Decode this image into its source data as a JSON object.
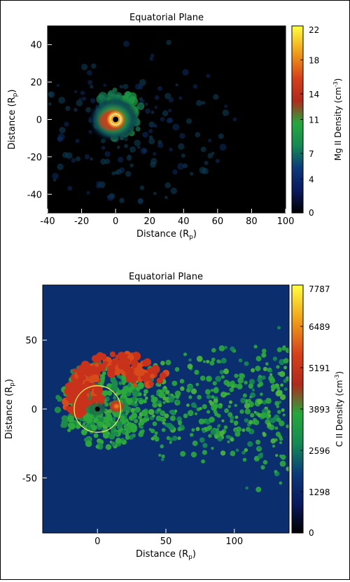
{
  "chart_data": [
    {
      "type": "heatmap",
      "title": "Equatorial Plane",
      "xlabel": "Distance (R",
      "xlabel_sub": "p",
      "ylabel": "Distance (R",
      "ylabel_sub": "p",
      "xlim": [
        -40,
        100
      ],
      "ylim": [
        -50,
        50
      ],
      "xticks": [
        -40,
        -20,
        0,
        20,
        40,
        60,
        80,
        100
      ],
      "yticks": [
        -40,
        -20,
        0,
        20,
        40
      ],
      "colorbar": {
        "label": "Mg II Density (cm",
        "label_sup": "-3",
        "ticks": [
          0,
          4,
          7,
          11,
          14,
          18,
          22
        ],
        "range": [
          0,
          22
        ]
      },
      "features": {
        "planet_x": 0,
        "planet_y": 0,
        "inner_circle_radius": 3.2,
        "peak_value": 22,
        "cloud_extent_x": [
          -25,
          40
        ],
        "cloud_extent_y": [
          -30,
          35
        ]
      }
    },
    {
      "type": "heatmap",
      "title": "Equatorial Plane",
      "xlabel": "Distance (R",
      "xlabel_sub": "p",
      "ylabel": "Distance (R",
      "ylabel_sub": "p",
      "xlim": [
        -40,
        140
      ],
      "ylim": [
        -90,
        90
      ],
      "xticks": [
        0,
        50,
        100
      ],
      "yticks": [
        -50,
        0,
        50
      ],
      "colorbar": {
        "label": "C II Density (cm",
        "label_sup": "-3",
        "ticks": [
          0,
          1298,
          2596,
          3893,
          5191,
          6489,
          7787
        ],
        "range": [
          0,
          7787
        ]
      },
      "features": {
        "planet_x": 0,
        "planet_y": 0,
        "circle_radius": 17,
        "peak_value": 7787,
        "cloud_extent_x": [
          -25,
          140
        ],
        "cloud_extent_y": [
          -85,
          85
        ]
      }
    }
  ]
}
